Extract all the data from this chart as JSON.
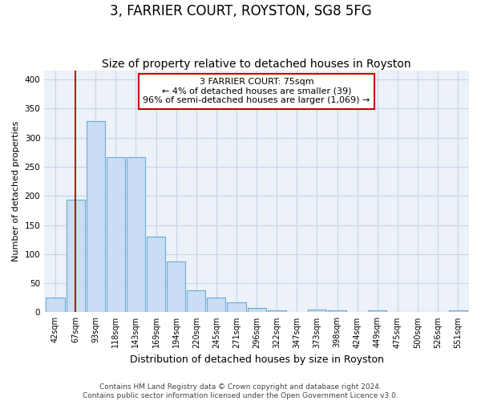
{
  "title": "3, FARRIER COURT, ROYSTON, SG8 5FG",
  "subtitle": "Size of property relative to detached houses in Royston",
  "xlabel": "Distribution of detached houses by size in Royston",
  "ylabel": "Number of detached properties",
  "bar_labels": [
    "42sqm",
    "67sqm",
    "93sqm",
    "118sqm",
    "143sqm",
    "169sqm",
    "194sqm",
    "220sqm",
    "245sqm",
    "271sqm",
    "296sqm",
    "322sqm",
    "347sqm",
    "373sqm",
    "398sqm",
    "424sqm",
    "449sqm",
    "475sqm",
    "500sqm",
    "526sqm",
    "551sqm"
  ],
  "bar_values": [
    25,
    193,
    328,
    267,
    267,
    130,
    87,
    38,
    25,
    17,
    8,
    3,
    0,
    5,
    3,
    0,
    3,
    0,
    0,
    0,
    3
  ],
  "bar_color": "#c9ddf5",
  "bar_edge_color": "#6aaad4",
  "vline_x_idx": 1,
  "vline_color": "#cc0000",
  "annotation_text": "3 FARRIER COURT: 75sqm\n← 4% of detached houses are smaller (39)\n96% of semi-detached houses are larger (1,069) →",
  "annotation_box_facecolor": "#ffffff",
  "annotation_box_edgecolor": "#cc0000",
  "ylim": [
    0,
    415
  ],
  "yticks": [
    0,
    50,
    100,
    150,
    200,
    250,
    300,
    350,
    400
  ],
  "grid_color": "#c8d4e8",
  "plot_bg_color": "#edf1f8",
  "fig_bg_color": "#ffffff",
  "footer_line1": "Contains HM Land Registry data © Crown copyright and database right 2024.",
  "footer_line2": "Contains public sector information licensed under the Open Government Licence v3.0.",
  "title_fontsize": 12,
  "subtitle_fontsize": 10,
  "ylabel_fontsize": 8,
  "xlabel_fontsize": 9,
  "tick_fontsize": 7,
  "footer_fontsize": 6.5,
  "annot_fontsize": 8
}
